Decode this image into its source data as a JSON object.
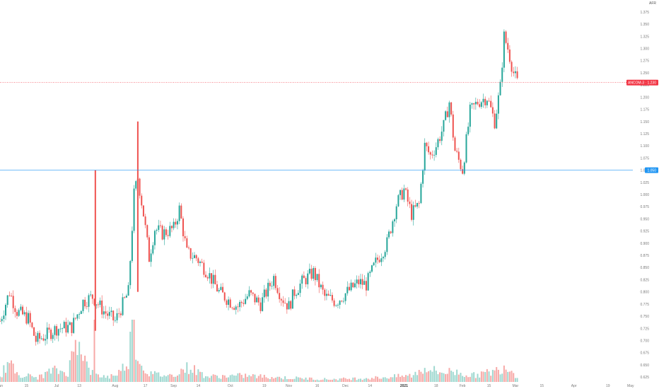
{
  "chart_data": {
    "type": "candlestick",
    "currency_unit": "AFR",
    "y_range": [
      0.615,
      1.385
    ],
    "y_ticks": [
      "1.375",
      "1.350",
      "1.325",
      "1.300",
      "1.275",
      "1.250",
      "1.225",
      "1.200",
      "1.175",
      "1.150",
      "1.125",
      "1.100",
      "1.075",
      "1.050",
      "1.025",
      "1.000",
      "0.975",
      "0.950",
      "0.925",
      "0.900",
      "0.875",
      "0.850",
      "0.825",
      "0.800",
      "0.775",
      "0.750",
      "0.725",
      "0.700",
      "0.675",
      "0.650",
      "0.625"
    ],
    "x_ticks": [
      {
        "label": "Jun",
        "day": 0
      },
      {
        "label": "15",
        "day": 14
      },
      {
        "label": "Jul",
        "day": 30
      },
      {
        "label": "13",
        "day": 42
      },
      {
        "label": "Aug",
        "day": 61
      },
      {
        "label": "17",
        "day": 77
      },
      {
        "label": "Sep",
        "day": 92
      },
      {
        "label": "14",
        "day": 105
      },
      {
        "label": "Oct",
        "day": 122
      },
      {
        "label": "19",
        "day": 140
      },
      {
        "label": "Nov",
        "day": 153
      },
      {
        "label": "16",
        "day": 168
      },
      {
        "label": "Dec",
        "day": 183
      },
      {
        "label": "14",
        "day": 196
      },
      {
        "label": "2021",
        "day": 214,
        "bold": true
      },
      {
        "label": "18",
        "day": 231
      },
      {
        "label": "Feb",
        "day": 245
      },
      {
        "label": "15",
        "day": 259
      },
      {
        "label": "Mar",
        "day": 273
      },
      {
        "label": "15",
        "day": 287
      },
      {
        "label": "Apr",
        "day": 304
      },
      {
        "label": "19",
        "day": 322
      },
      {
        "label": "May",
        "day": 334
      }
    ],
    "price_lines": [
      {
        "name": "last-price",
        "value": 1.23,
        "label": "ANCOM-3 · 1.230",
        "color": "#f23645",
        "style": "dotted"
      },
      {
        "name": "resistance",
        "value": 1.05,
        "label": "1.050",
        "color": "#2196f3",
        "style": "solid"
      }
    ],
    "colors": {
      "up": "#26a69a",
      "down": "#ef5350",
      "volume_up": "#9fd8d0",
      "volume_down": "#f7a9a7"
    },
    "anchors": [
      {
        "day": 0,
        "close": 0.74
      },
      {
        "day": 5,
        "close": 0.8
      },
      {
        "day": 9,
        "close": 0.76
      },
      {
        "day": 15,
        "close": 0.745
      },
      {
        "day": 19,
        "close": 0.7
      },
      {
        "day": 24,
        "close": 0.71
      },
      {
        "day": 30,
        "close": 0.725
      },
      {
        "day": 38,
        "close": 0.728
      },
      {
        "day": 44,
        "close": 0.78
      },
      {
        "day": 49,
        "close": 0.79
      },
      {
        "day": 55,
        "close": 0.76
      },
      {
        "day": 61,
        "close": 0.74
      },
      {
        "day": 68,
        "close": 0.8
      },
      {
        "day": 71,
        "close": 1.0
      },
      {
        "day": 73,
        "close": 1.035
      },
      {
        "day": 76,
        "close": 0.96
      },
      {
        "day": 79,
        "close": 0.87
      },
      {
        "day": 82,
        "close": 0.93
      },
      {
        "day": 86,
        "close": 0.92
      },
      {
        "day": 92,
        "close": 0.93
      },
      {
        "day": 95,
        "close": 0.97
      },
      {
        "day": 99,
        "close": 0.88
      },
      {
        "day": 104,
        "close": 0.87
      },
      {
        "day": 110,
        "close": 0.84
      },
      {
        "day": 116,
        "close": 0.8
      },
      {
        "day": 122,
        "close": 0.78
      },
      {
        "day": 126,
        "close": 0.77
      },
      {
        "day": 132,
        "close": 0.795
      },
      {
        "day": 138,
        "close": 0.775
      },
      {
        "day": 145,
        "close": 0.83
      },
      {
        "day": 149,
        "close": 0.79
      },
      {
        "day": 153,
        "close": 0.77
      },
      {
        "day": 156,
        "close": 0.8
      },
      {
        "day": 160,
        "close": 0.82
      },
      {
        "day": 166,
        "close": 0.84
      },
      {
        "day": 172,
        "close": 0.79
      },
      {
        "day": 178,
        "close": 0.78
      },
      {
        "day": 184,
        "close": 0.8
      },
      {
        "day": 190,
        "close": 0.82
      },
      {
        "day": 194,
        "close": 0.815
      },
      {
        "day": 199,
        "close": 0.86
      },
      {
        "day": 205,
        "close": 0.9
      },
      {
        "day": 210,
        "close": 0.98
      },
      {
        "day": 214,
        "close": 1.01
      },
      {
        "day": 218,
        "close": 0.96
      },
      {
        "day": 222,
        "close": 0.98
      },
      {
        "day": 225,
        "close": 1.1
      },
      {
        "day": 228,
        "close": 1.08
      },
      {
        "day": 231,
        "close": 1.1
      },
      {
        "day": 235,
        "close": 1.14
      },
      {
        "day": 238,
        "close": 1.19
      },
      {
        "day": 241,
        "close": 1.09
      },
      {
        "day": 245,
        "close": 1.05
      },
      {
        "day": 249,
        "close": 1.17
      },
      {
        "day": 253,
        "close": 1.19
      },
      {
        "day": 258,
        "close": 1.2
      },
      {
        "day": 262,
        "close": 1.15
      },
      {
        "day": 265,
        "close": 1.22
      },
      {
        "day": 267,
        "close": 1.325
      },
      {
        "day": 269,
        "close": 1.3
      },
      {
        "day": 272,
        "close": 1.25
      },
      {
        "day": 274,
        "close": 1.23
      }
    ],
    "volume": [
      {
        "day": 0,
        "v": 0.1
      },
      {
        "day": 4,
        "v": 0.35
      },
      {
        "day": 10,
        "v": 0.15
      },
      {
        "day": 20,
        "v": 0.08
      },
      {
        "day": 28,
        "v": 0.22
      },
      {
        "day": 36,
        "v": 0.18
      },
      {
        "day": 42,
        "v": 1.0
      },
      {
        "day": 44,
        "v": 0.55
      },
      {
        "day": 46,
        "v": 0.3
      },
      {
        "day": 50,
        "v": 0.12
      },
      {
        "day": 58,
        "v": 0.1
      },
      {
        "day": 64,
        "v": 0.2
      },
      {
        "day": 68,
        "v": 0.45
      },
      {
        "day": 70,
        "v": 1.0
      },
      {
        "day": 72,
        "v": 0.6
      },
      {
        "day": 75,
        "v": 0.3
      },
      {
        "day": 80,
        "v": 0.15
      },
      {
        "day": 90,
        "v": 0.12
      },
      {
        "day": 100,
        "v": 0.28
      },
      {
        "day": 110,
        "v": 0.1
      },
      {
        "day": 130,
        "v": 0.12
      },
      {
        "day": 150,
        "v": 0.08
      },
      {
        "day": 175,
        "v": 0.05
      },
      {
        "day": 200,
        "v": 0.08
      },
      {
        "day": 218,
        "v": 0.12
      },
      {
        "day": 226,
        "v": 0.28
      },
      {
        "day": 232,
        "v": 0.18
      },
      {
        "day": 240,
        "v": 0.2
      },
      {
        "day": 250,
        "v": 0.12
      },
      {
        "day": 262,
        "v": 0.2
      },
      {
        "day": 268,
        "v": 0.32
      },
      {
        "day": 274,
        "v": 0.1
      }
    ]
  }
}
